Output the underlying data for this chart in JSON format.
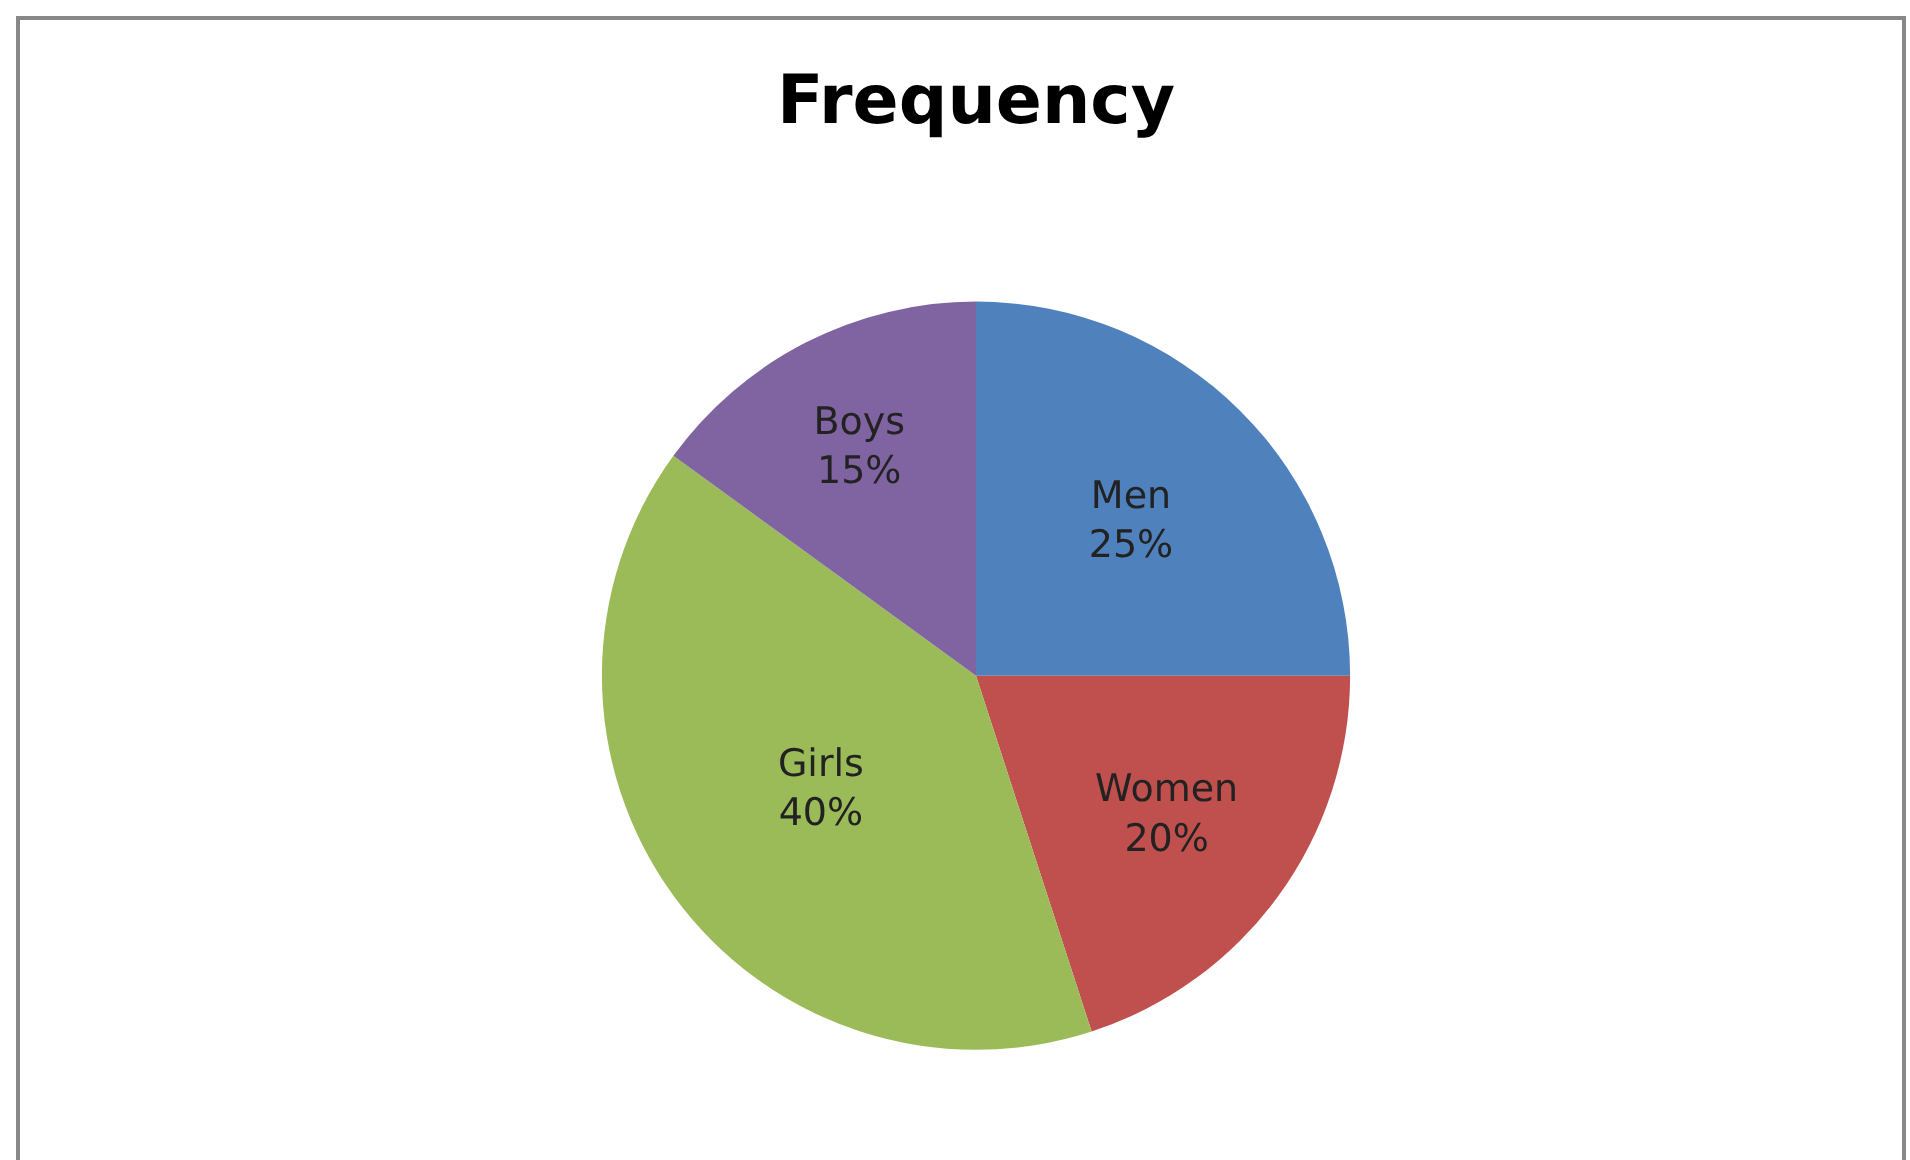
{
  "chart_data": {
    "type": "pie",
    "title": "Frequency",
    "categories": [
      "Men",
      "Women",
      "Girls",
      "Boys"
    ],
    "values": [
      25,
      20,
      40,
      15
    ],
    "value_labels": [
      "25%",
      "20%",
      "40%",
      "15%"
    ],
    "colors": [
      "#4f81bd",
      "#c0504d",
      "#9bbb59",
      "#8064a2"
    ],
    "legend": false
  }
}
